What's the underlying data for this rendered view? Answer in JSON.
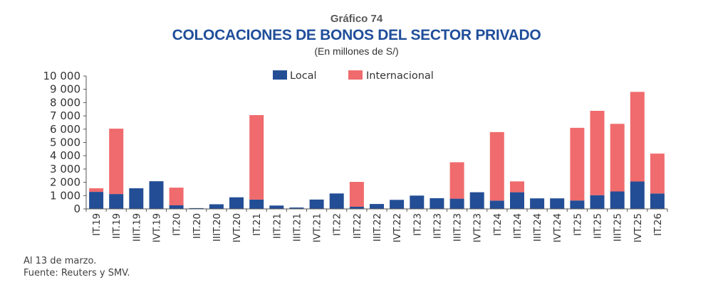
{
  "header": {
    "kicker": "Gráfico 74",
    "title": "COLOCACIONES DE BONOS DEL SECTOR PRIVADO",
    "subtitle": "(En millones de S/)"
  },
  "footer": {
    "note": "Al 13 de marzo.",
    "source": "Fuente: Reuters y SMV."
  },
  "chart_data": {
    "type": "bar",
    "stacked": true,
    "title": "COLOCACIONES DE BONOS DEL SECTOR PRIVADO",
    "subtitle": "(En millones de S/)",
    "xlabel": "",
    "ylabel": "",
    "ylim": [
      0,
      10000
    ],
    "yticks": [
      0,
      1000,
      2000,
      3000,
      4000,
      5000,
      6000,
      7000,
      8000,
      9000,
      10000
    ],
    "ytick_labels": [
      "0",
      "1 000",
      "2 000",
      "3 000",
      "4 000",
      "5 000",
      "6 000",
      "7 000",
      "8 000",
      "9 000",
      "10 000"
    ],
    "grid": false,
    "legend_position": "top-center",
    "categories": [
      "IT.19",
      "IIT.19",
      "IIIT.19",
      "IVT.19",
      "IT.20",
      "IIT.20",
      "IIIT.20",
      "IVT.20",
      "IT.21",
      "IIT.21",
      "IIIT.21",
      "IVT.21",
      "IT.22",
      "IIT.22",
      "IIIT.22",
      "IVT.22",
      "IT.23",
      "IIT.23",
      "IIIT.23",
      "IVT.23",
      "IT.24",
      "IIT.24",
      "IIIT.24",
      "IVT.24",
      "IT.25",
      "IIT.25",
      "IIIT.25",
      "IVT.25",
      "IT.26"
    ],
    "series": [
      {
        "name": "Local",
        "color": "#234e96",
        "values": [
          1280,
          1120,
          1550,
          2080,
          270,
          60,
          350,
          870,
          700,
          250,
          100,
          700,
          1160,
          160,
          370,
          680,
          1000,
          800,
          770,
          1250,
          620,
          1250,
          790,
          790,
          630,
          1030,
          1310,
          2060,
          1160
        ]
      },
      {
        "name": "Internacional",
        "color": "#f06b6d",
        "values": [
          270,
          4920,
          0,
          0,
          1330,
          0,
          0,
          0,
          6360,
          0,
          0,
          0,
          0,
          1870,
          0,
          0,
          0,
          0,
          2740,
          0,
          5160,
          820,
          0,
          0,
          5470,
          6350,
          5090,
          6750,
          3000
        ]
      }
    ]
  }
}
